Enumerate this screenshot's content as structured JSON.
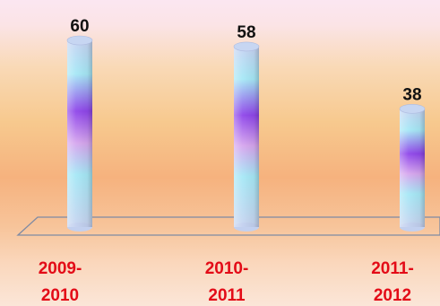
{
  "chart_data": {
    "type": "bar",
    "categories": [
      [
        "2009-",
        "2010"
      ],
      [
        "2010-",
        "2011"
      ],
      [
        "2011-",
        "2012"
      ]
    ],
    "values": [
      60,
      58,
      38
    ],
    "data_labels": [
      "60",
      "58",
      "38"
    ],
    "ylim": [
      0,
      60
    ],
    "grid": false,
    "legend": "none",
    "colors": {
      "bar_top": "#c7d6f2",
      "bar_light": "#a3e8f5",
      "bar_mid": "#8c3ee8",
      "bar_pink": "#d8a0ea",
      "category_label": "#e30b17",
      "value_label": "#111111",
      "floor_outline": "#7f8aa3"
    }
  }
}
